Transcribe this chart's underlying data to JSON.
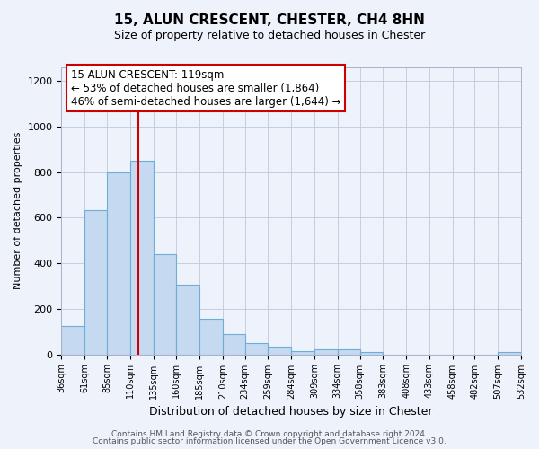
{
  "title": "15, ALUN CRESCENT, CHESTER, CH4 8HN",
  "subtitle": "Size of property relative to detached houses in Chester",
  "xlabel": "Distribution of detached houses by size in Chester",
  "ylabel": "Number of detached properties",
  "footer_line1": "Contains HM Land Registry data © Crown copyright and database right 2024.",
  "footer_line2": "Contains public sector information licensed under the Open Government Licence v3.0.",
  "property_label": "15 ALUN CRESCENT: 119sqm",
  "annotation_line1": "← 53% of detached houses are smaller (1,864)",
  "annotation_line2": "46% of semi-detached houses are larger (1,644) →",
  "property_size": 119,
  "bin_edges": [
    36,
    61,
    85,
    110,
    135,
    160,
    185,
    210,
    234,
    259,
    284,
    309,
    334,
    358,
    383,
    408,
    433,
    458,
    482,
    507,
    532
  ],
  "bar_values": [
    125,
    635,
    800,
    850,
    440,
    305,
    155,
    90,
    50,
    35,
    15,
    20,
    20,
    10,
    0,
    0,
    0,
    0,
    0,
    10
  ],
  "bar_color": "#c5d9f0",
  "bar_edge_color": "#6baed6",
  "marker_color": "#cc0000",
  "background_color": "#eef2fb",
  "annotation_box_color": "#ffffff",
  "annotation_box_edge": "#cc0000",
  "ylim": [
    0,
    1260
  ],
  "yticks": [
    0,
    200,
    400,
    600,
    800,
    1000,
    1200
  ],
  "grid_color": "#c0c8dc",
  "title_fontsize": 11,
  "subtitle_fontsize": 9,
  "annotation_fontsize": 8.5,
  "xlabel_fontsize": 9,
  "ylabel_fontsize": 8
}
